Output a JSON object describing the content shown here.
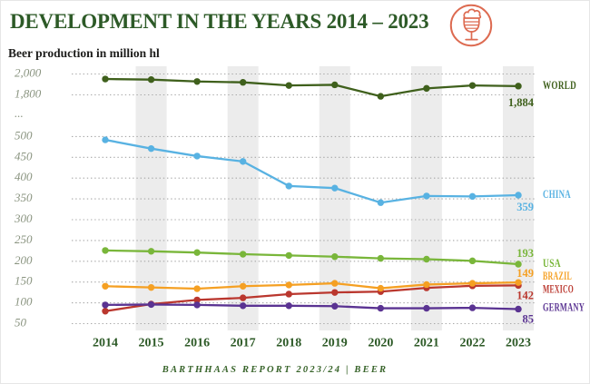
{
  "header": {
    "icon": "beer-glass-icon"
  },
  "chart_data": {
    "type": "line",
    "title": "DEVELOPMENT IN THE YEARS 2014 – 2023",
    "ylabel": "Beer production in million hl",
    "source": "BARTHHAAS REPORT 2023/24 | BEER",
    "unit": "million hl",
    "x": [
      "2014",
      "2015",
      "2016",
      "2017",
      "2018",
      "2019",
      "2020",
      "2021",
      "2022",
      "2023"
    ],
    "x_stripe_years": [
      "2015",
      "2017",
      "2019",
      "2021",
      "2023"
    ],
    "grid": "horizontal-dotted",
    "legend_position": "right",
    "y_axis": {
      "broken": true,
      "upper_ticks": [
        {
          "label": "2,000",
          "value": 2000
        },
        {
          "label": "1,800",
          "value": 1800
        }
      ],
      "break_label": "...",
      "lower_ticks": [
        {
          "label": "500",
          "value": 500
        },
        {
          "label": "450",
          "value": 450
        },
        {
          "label": "400",
          "value": 400
        },
        {
          "label": "350",
          "value": 350
        },
        {
          "label": "300",
          "value": 300
        },
        {
          "label": "250",
          "value": 250
        },
        {
          "label": "200",
          "value": 200
        },
        {
          "label": "150",
          "value": 150
        },
        {
          "label": "100",
          "value": 100
        },
        {
          "label": "50",
          "value": 50
        }
      ]
    },
    "series": [
      {
        "name": "WORLD",
        "color": "#3f601c",
        "values": [
          1952,
          1946,
          1928,
          1920,
          1890,
          1896,
          1786,
          1862,
          1890,
          1884
        ],
        "end_label": "1,884"
      },
      {
        "name": "CHINA",
        "color": "#58b2e2",
        "values": [
          492,
          471,
          453,
          440,
          381,
          376,
          341,
          357,
          356,
          359
        ],
        "end_label": "359"
      },
      {
        "name": "USA",
        "color": "#79b63a",
        "values": [
          226,
          224,
          221,
          217,
          214,
          211,
          207,
          205,
          201,
          193
        ],
        "end_label": "193"
      },
      {
        "name": "BRAZIL",
        "color": "#f5a023",
        "values": [
          140,
          137,
          134,
          140,
          143,
          147,
          135,
          144,
          147,
          149
        ],
        "end_label": "149"
      },
      {
        "name": "MEXICO",
        "color": "#ba372e",
        "values": [
          80,
          97,
          107,
          112,
          121,
          125,
          127,
          136,
          141,
          142
        ],
        "end_label": "142"
      },
      {
        "name": "GERMANY",
        "color": "#5a3392",
        "values": [
          95,
          96,
          95,
          93,
          93,
          92,
          87,
          87,
          88,
          85
        ],
        "end_label": "85"
      }
    ]
  },
  "colors": {
    "background": "#ffffff",
    "title": "#2d5a27",
    "subtitle": "#1d1d1b",
    "axis_tick": "#8a9480",
    "x_tick": "#2d5a27",
    "grid": "#a8a8a8",
    "stripe": "#ececec",
    "footer": "#376329",
    "icon": "#dd6b51"
  }
}
